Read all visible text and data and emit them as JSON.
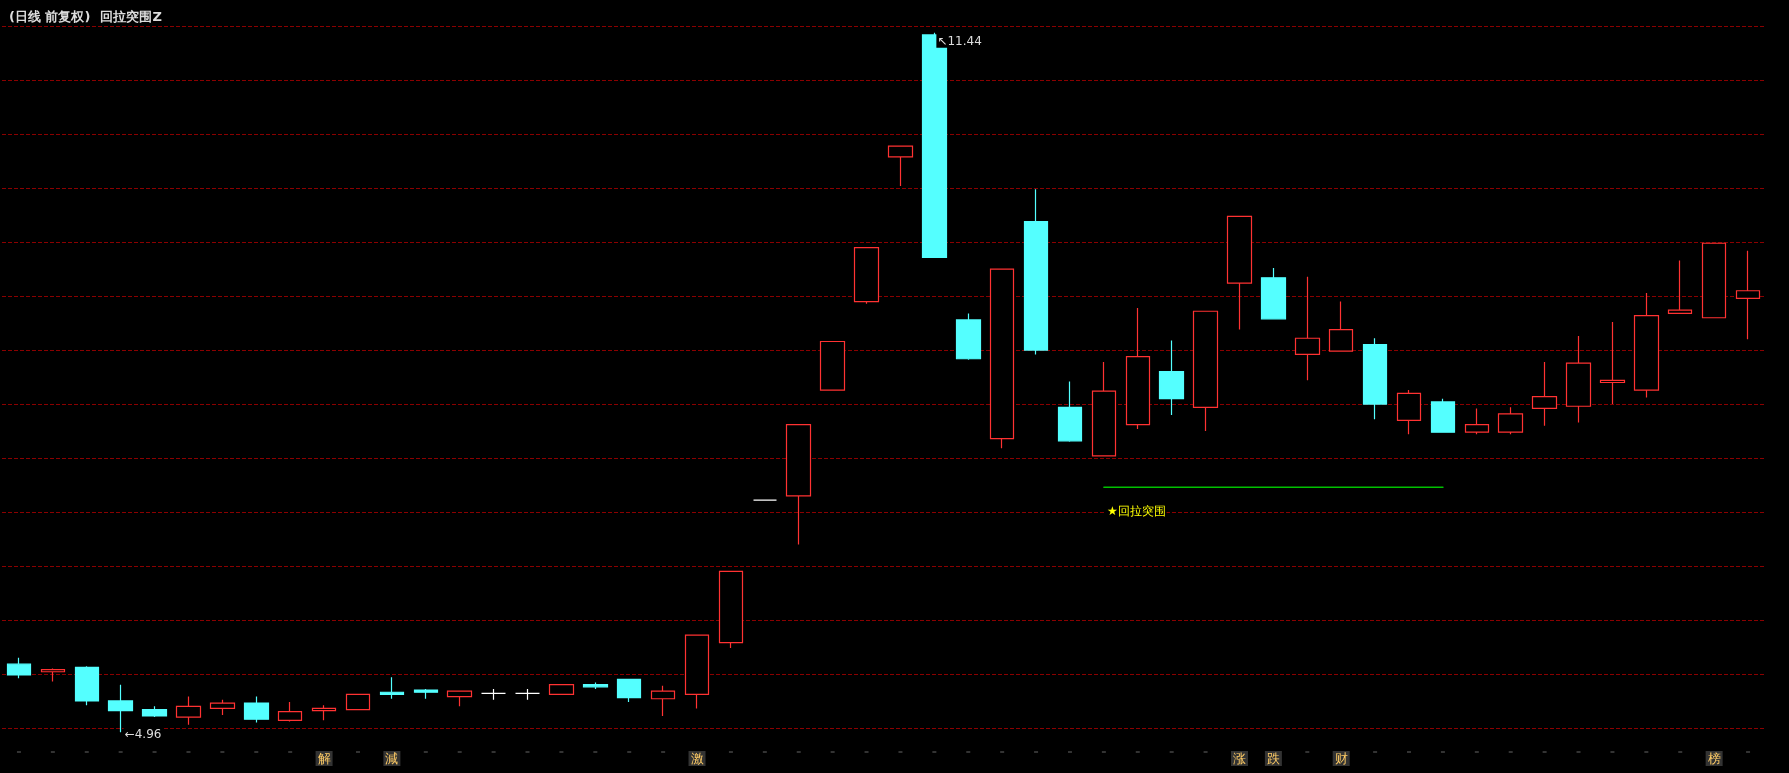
{
  "chart_data": {
    "type": "candlestick",
    "title": "(日线 前复权)",
    "subtitle": "回拉突围Z",
    "categories": [
      null,
      null,
      null,
      null,
      null,
      null,
      null,
      null,
      null,
      "解",
      null,
      "減",
      null,
      null,
      null,
      null,
      null,
      null,
      null,
      null,
      "激",
      null,
      null,
      null,
      null,
      null,
      null,
      null,
      null,
      null,
      null,
      null,
      null,
      null,
      null,
      null,
      "涨",
      "跌",
      null,
      "财",
      null,
      null,
      null,
      null,
      null,
      null,
      null,
      null,
      null,
      null,
      "榜",
      null
    ],
    "ohlc": [
      [
        5.59,
        5.65,
        5.46,
        5.49
      ],
      [
        5.52,
        5.55,
        5.43,
        5.54
      ],
      [
        5.56,
        5.57,
        5.21,
        5.25
      ],
      [
        5.25,
        5.4,
        4.96,
        5.16
      ],
      [
        5.17,
        5.2,
        5.1,
        5.11
      ],
      [
        5.1,
        5.29,
        5.03,
        5.2
      ],
      [
        5.18,
        5.26,
        5.12,
        5.23
      ],
      [
        5.23,
        5.29,
        5.05,
        5.08
      ],
      [
        5.07,
        5.24,
        5.06,
        5.15
      ],
      [
        5.16,
        5.21,
        5.07,
        5.18
      ],
      [
        5.17,
        5.31,
        5.17,
        5.31
      ],
      [
        5.33,
        5.47,
        5.27,
        5.31
      ],
      [
        5.35,
        5.36,
        5.27,
        5.33
      ],
      [
        5.29,
        5.34,
        5.2,
        5.34
      ],
      [
        5.32,
        5.36,
        5.26,
        5.32
      ],
      [
        5.32,
        5.36,
        5.26,
        5.32
      ],
      [
        5.31,
        5.4,
        5.31,
        5.4
      ],
      [
        5.4,
        5.42,
        5.36,
        5.38
      ],
      [
        5.45,
        5.45,
        5.24,
        5.28
      ],
      [
        5.27,
        5.39,
        5.11,
        5.34
      ],
      [
        5.31,
        5.86,
        5.18,
        5.86
      ],
      [
        5.79,
        6.45,
        5.74,
        6.45
      ],
      [
        7.11,
        7.11,
        7.11,
        7.11
      ],
      [
        7.15,
        7.81,
        6.7,
        7.81
      ],
      [
        8.13,
        8.58,
        8.13,
        8.58
      ],
      [
        8.95,
        9.45,
        8.93,
        9.45
      ],
      [
        10.29,
        10.39,
        10.02,
        10.39
      ],
      [
        11.42,
        11.44,
        9.36,
        9.36
      ],
      [
        8.78,
        8.84,
        8.41,
        8.42
      ],
      [
        7.68,
        9.25,
        7.59,
        9.25
      ],
      [
        9.69,
        9.99,
        8.46,
        8.5
      ],
      [
        7.97,
        8.21,
        7.65,
        7.66
      ],
      [
        7.52,
        8.39,
        7.52,
        8.12
      ],
      [
        7.81,
        8.89,
        7.77,
        8.44
      ],
      [
        8.3,
        8.59,
        7.9,
        8.05
      ],
      [
        7.97,
        8.86,
        7.75,
        8.86
      ],
      [
        9.12,
        9.74,
        8.69,
        9.74
      ],
      [
        9.17,
        9.26,
        8.79,
        8.79
      ],
      [
        8.46,
        9.18,
        8.22,
        8.61
      ],
      [
        8.49,
        8.95,
        8.49,
        8.69
      ],
      [
        8.55,
        8.61,
        7.86,
        8.0
      ],
      [
        7.85,
        8.13,
        7.72,
        8.1
      ],
      [
        8.02,
        8.05,
        7.74,
        7.74
      ],
      [
        7.74,
        7.96,
        7.72,
        7.81
      ],
      [
        7.74,
        7.97,
        7.72,
        7.91
      ],
      [
        7.96,
        8.39,
        7.8,
        8.07
      ],
      [
        7.98,
        8.63,
        7.83,
        8.38
      ],
      [
        8.2,
        8.76,
        8.0,
        8.22
      ],
      [
        8.13,
        9.03,
        8.06,
        8.82
      ],
      [
        8.84,
        9.33,
        8.84,
        8.87
      ],
      [
        8.8,
        9.49,
        8.8,
        9.49
      ],
      [
        8.98,
        9.42,
        8.6,
        9.05
      ]
    ],
    "colors": [
      "#54ffff",
      "#ff3232",
      "#54ffff",
      "#54ffff",
      "#54ffff",
      "#ff3232",
      "#ff3232",
      "#54ffff",
      "#ff3232",
      "#ff3232",
      "#ff3232",
      "#54ffff",
      "#54ffff",
      "#ff3232",
      "#ffffff",
      "#ffffff",
      "#ff3232",
      "#54ffff",
      "#54ffff",
      "#ff3232",
      "#ff3232",
      "#ff3232",
      "#ffffff",
      "#ff3232",
      "#ff3232",
      "#ff3232",
      "#ff3232",
      "#54ffff",
      "#54ffff",
      "#ff3232",
      "#54ffff",
      "#54ffff",
      "#ff3232",
      "#ff3232",
      "#54ffff",
      "#ff3232",
      "#ff3232",
      "#54ffff",
      "#ff3232",
      "#ff3232",
      "#54ffff",
      "#ff3232",
      "#54ffff",
      "#ff3232",
      "#ff3232",
      "#ff3232",
      "#ff3232",
      "#ff3232",
      "#ff3232",
      "#ff3232",
      "#ff3232",
      "#ff3232"
    ],
    "series": [
      {
        "type": "line",
        "color": "#00c000",
        "values": [
          null,
          null,
          null,
          null,
          null,
          null,
          null,
          null,
          null,
          null,
          null,
          null,
          null,
          null,
          null,
          null,
          null,
          null,
          null,
          null,
          null,
          null,
          null,
          null,
          null,
          null,
          null,
          null,
          null,
          null,
          null,
          null,
          7.23,
          7.23,
          7.23,
          7.23,
          7.23,
          7.23,
          7.23,
          7.23,
          7.23,
          7.23,
          7.23,
          null,
          null,
          null,
          null,
          null,
          null,
          null,
          null,
          null
        ]
      }
    ],
    "annotations": [
      "↖11.44",
      "←4.96",
      "★回拉突围"
    ],
    "yticks": [
      {
        "value": 5,
        "label": null
      },
      {
        "value": 5.5,
        "label": null
      },
      {
        "value": 6,
        "label": null
      },
      {
        "value": 6.5,
        "label": null
      },
      {
        "value": 7,
        "label": null
      },
      {
        "value": 7.5,
        "label": null
      },
      {
        "value": 8,
        "label": null
      },
      {
        "value": 8.5,
        "label": null
      },
      {
        "value": 9,
        "label": null
      },
      {
        "value": 9.5,
        "label": null
      },
      {
        "value": 10,
        "label": null
      },
      {
        "value": 10.5,
        "label": null
      },
      {
        "value": 11,
        "label": null
      },
      {
        "value": 11.5,
        "label": null
      }
    ],
    "marker": "none",
    "line_style": "solid",
    "grid": "y"
  }
}
